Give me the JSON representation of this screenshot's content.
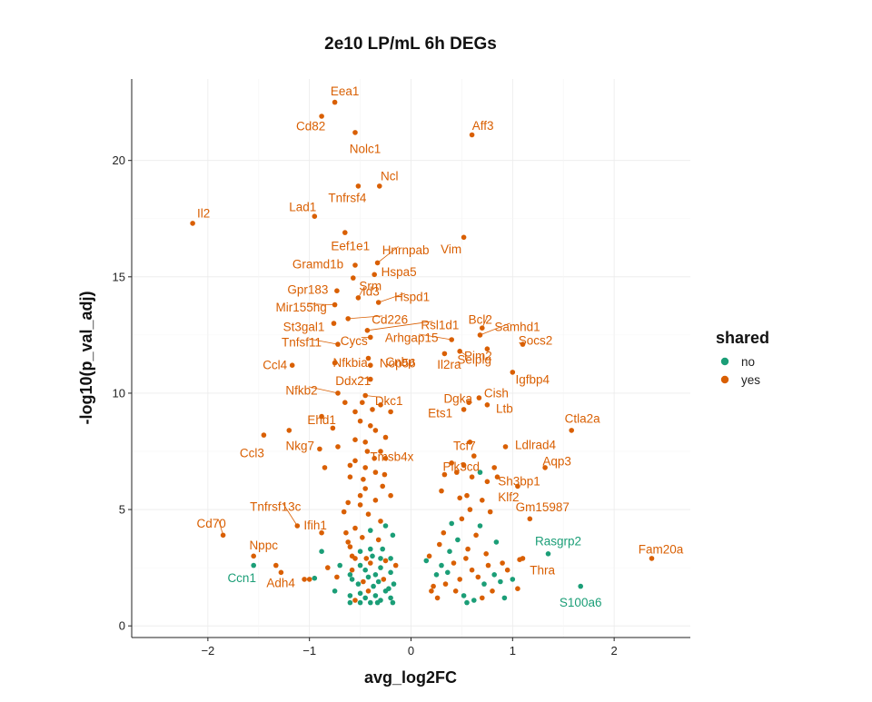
{
  "chart_data": {
    "type": "scatter",
    "title": "2e10 LP/mL 6h DEGs",
    "xlabel": "avg_log2FC",
    "ylabel": "-log10(p_val_adj)",
    "xlim": [
      -2.75,
      2.75
    ],
    "ylim": [
      -0.5,
      23.5
    ],
    "x_ticks": [
      -2,
      -1,
      0,
      1,
      2
    ],
    "y_ticks": [
      0,
      5,
      10,
      15,
      20
    ],
    "grid": true,
    "legend": {
      "title": "shared",
      "placement": "right",
      "entries": [
        {
          "key": "no",
          "label": "no",
          "color": "#1B9E77"
        },
        {
          "key": "yes",
          "label": "yes",
          "color": "#D95F02"
        }
      ]
    },
    "labeled_points": [
      {
        "gene": "Eea1",
        "x": -0.75,
        "y": 22.5,
        "shared": "yes"
      },
      {
        "gene": "Cd82",
        "x": -0.88,
        "y": 21.9,
        "shared": "yes"
      },
      {
        "gene": "Nolc1",
        "x": -0.55,
        "y": 21.2,
        "shared": "yes"
      },
      {
        "gene": "Aff3",
        "x": 0.6,
        "y": 21.1,
        "shared": "yes"
      },
      {
        "gene": "Ncl",
        "x": -0.31,
        "y": 18.9,
        "shared": "yes"
      },
      {
        "gene": "Tnfrsf4",
        "x": -0.52,
        "y": 18.9,
        "shared": "yes"
      },
      {
        "gene": "Lad1",
        "x": -0.95,
        "y": 17.6,
        "shared": "yes"
      },
      {
        "gene": "Il2",
        "x": -2.15,
        "y": 17.3,
        "shared": "yes"
      },
      {
        "gene": "Eef1e1",
        "x": -0.65,
        "y": 16.9,
        "shared": "yes"
      },
      {
        "gene": "Vim",
        "x": 0.52,
        "y": 16.7,
        "shared": "yes"
      },
      {
        "gene": "Hnrnpab",
        "x": -0.33,
        "y": 15.6,
        "shared": "yes"
      },
      {
        "gene": "Gramd1b",
        "x": -0.55,
        "y": 15.5,
        "shared": "yes"
      },
      {
        "gene": "Hspa5",
        "x": -0.36,
        "y": 15.1,
        "shared": "yes"
      },
      {
        "gene": "Gpr183",
        "x": -0.73,
        "y": 14.4,
        "shared": "yes"
      },
      {
        "gene": "Srm",
        "x": -0.57,
        "y": 14.95,
        "shared": "yes"
      },
      {
        "gene": "Hspd1",
        "x": -0.32,
        "y": 13.9,
        "shared": "yes"
      },
      {
        "gene": "Mir155hg",
        "x": -0.75,
        "y": 13.8,
        "shared": "yes"
      },
      {
        "gene": "Id3",
        "x": -0.52,
        "y": 14.1,
        "shared": "yes"
      },
      {
        "gene": "Cd226",
        "x": -0.62,
        "y": 13.2,
        "shared": "yes"
      },
      {
        "gene": "Rsl1d1",
        "x": -0.43,
        "y": 12.7,
        "shared": "yes"
      },
      {
        "gene": "Bcl2",
        "x": 0.7,
        "y": 12.8,
        "shared": "yes"
      },
      {
        "gene": "Samhd1",
        "x": 0.68,
        "y": 12.5,
        "shared": "yes"
      },
      {
        "gene": "St3gal1",
        "x": -0.76,
        "y": 13.0,
        "shared": "yes"
      },
      {
        "gene": "Cycs",
        "x": -0.4,
        "y": 12.4,
        "shared": "yes"
      },
      {
        "gene": "Arhgap15",
        "x": 0.4,
        "y": 12.3,
        "shared": "yes"
      },
      {
        "gene": "Socs2",
        "x": 1.1,
        "y": 12.1,
        "shared": "yes"
      },
      {
        "gene": "Tnfsf11",
        "x": -0.72,
        "y": 12.1,
        "shared": "yes"
      },
      {
        "gene": "Selplg",
        "x": 0.48,
        "y": 11.8,
        "shared": "yes"
      },
      {
        "gene": "Cnbp",
        "x": -0.42,
        "y": 11.5,
        "shared": "yes"
      },
      {
        "gene": "Ccl4",
        "x": -1.17,
        "y": 11.2,
        "shared": "yes"
      },
      {
        "gene": "Nfkbia",
        "x": -0.75,
        "y": 11.3,
        "shared": "yes"
      },
      {
        "gene": "Il2ra",
        "x": 0.33,
        "y": 11.7,
        "shared": "yes"
      },
      {
        "gene": "Pim2",
        "x": 0.75,
        "y": 11.9,
        "shared": "yes"
      },
      {
        "gene": "Nop56",
        "x": -0.4,
        "y": 11.2,
        "shared": "yes"
      },
      {
        "gene": "Ddx21",
        "x": -0.4,
        "y": 10.6,
        "shared": "yes"
      },
      {
        "gene": "Igfbp4",
        "x": 1.0,
        "y": 10.9,
        "shared": "yes"
      },
      {
        "gene": "Nfkb2",
        "x": -0.72,
        "y": 10.0,
        "shared": "yes"
      },
      {
        "gene": "Dkc1",
        "x": -0.45,
        "y": 9.9,
        "shared": "yes"
      },
      {
        "gene": "Dgka",
        "x": 0.57,
        "y": 9.6,
        "shared": "yes"
      },
      {
        "gene": "Cish",
        "x": 0.67,
        "y": 9.8,
        "shared": "yes"
      },
      {
        "gene": "Ehd1",
        "x": -0.88,
        "y": 9.0,
        "shared": "yes"
      },
      {
        "gene": "Ets1",
        "x": 0.52,
        "y": 9.3,
        "shared": "yes"
      },
      {
        "gene": "Ltb",
        "x": 0.75,
        "y": 9.5,
        "shared": "yes"
      },
      {
        "gene": "Tcf7",
        "x": 0.58,
        "y": 7.9,
        "shared": "yes"
      },
      {
        "gene": "Ctla2a",
        "x": 1.58,
        "y": 8.4,
        "shared": "yes"
      },
      {
        "gene": "Ccl3",
        "x": -1.45,
        "y": 8.2,
        "shared": "yes"
      },
      {
        "gene": "Nkg7",
        "x": -1.2,
        "y": 8.4,
        "shared": "yes"
      },
      {
        "gene": "Ldlrad4",
        "x": 0.93,
        "y": 7.7,
        "shared": "yes"
      },
      {
        "gene": "Tmsb4x",
        "x": -0.43,
        "y": 7.5,
        "shared": "yes"
      },
      {
        "gene": "Pik3cd",
        "x": 0.62,
        "y": 7.3,
        "shared": "yes"
      },
      {
        "gene": "Aqp3",
        "x": 1.32,
        "y": 6.8,
        "shared": "yes"
      },
      {
        "gene": "Sh3bp1",
        "x": 0.85,
        "y": 6.4,
        "shared": "yes"
      },
      {
        "gene": "Klf2",
        "x": 1.05,
        "y": 6.0,
        "shared": "yes"
      },
      {
        "gene": "Tnfrsf13c",
        "x": -1.12,
        "y": 4.3,
        "shared": "yes"
      },
      {
        "gene": "Gm15987",
        "x": 1.17,
        "y": 4.6,
        "shared": "yes"
      },
      {
        "gene": "Ifih1",
        "x": -0.88,
        "y": 4.0,
        "shared": "yes"
      },
      {
        "gene": "Cd70",
        "x": -1.85,
        "y": 3.9,
        "shared": "yes"
      },
      {
        "gene": "Rasgrp2",
        "x": 1.35,
        "y": 3.1,
        "shared": "no"
      },
      {
        "gene": "Fam20a",
        "x": 2.37,
        "y": 2.9,
        "shared": "yes"
      },
      {
        "gene": "Nppc",
        "x": -1.55,
        "y": 3.0,
        "shared": "yes"
      },
      {
        "gene": "Thra",
        "x": 1.07,
        "y": 2.85,
        "shared": "yes"
      },
      {
        "gene": "Ccn1",
        "x": -1.55,
        "y": 2.6,
        "shared": "no"
      },
      {
        "gene": "Adh4",
        "x": -1.05,
        "y": 2.0,
        "shared": "yes"
      },
      {
        "gene": "S100a6",
        "x": 1.67,
        "y": 1.7,
        "shared": "no"
      }
    ],
    "points": [
      [
        -1.33,
        2.6,
        "yes"
      ],
      [
        -1.28,
        2.3,
        "yes"
      ],
      [
        -1.0,
        2.0,
        "yes"
      ],
      [
        -0.95,
        2.05,
        "no"
      ],
      [
        -0.88,
        3.2,
        "no"
      ],
      [
        -0.82,
        2.5,
        "yes"
      ],
      [
        -0.75,
        1.5,
        "no"
      ],
      [
        -0.73,
        2.1,
        "yes"
      ],
      [
        -0.7,
        2.6,
        "no"
      ],
      [
        -0.6,
        2.2,
        "no"
      ],
      [
        -0.6,
        3.4,
        "yes"
      ],
      [
        -0.58,
        3.0,
        "yes"
      ],
      [
        -0.62,
        5.3,
        "yes"
      ],
      [
        -0.64,
        4.0,
        "yes"
      ],
      [
        -0.66,
        4.9,
        "yes"
      ],
      [
        -0.9,
        7.6,
        "yes"
      ],
      [
        -0.85,
        6.8,
        "yes"
      ],
      [
        -0.77,
        8.5,
        "yes"
      ],
      [
        -0.72,
        7.7,
        "yes"
      ],
      [
        -0.6,
        6.4,
        "yes"
      ],
      [
        -0.55,
        7.1,
        "yes"
      ],
      [
        -0.55,
        8.0,
        "yes"
      ],
      [
        -0.5,
        8.8,
        "yes"
      ],
      [
        -0.45,
        7.9,
        "yes"
      ],
      [
        -0.4,
        8.6,
        "yes"
      ],
      [
        -0.35,
        8.4,
        "yes"
      ],
      [
        -0.3,
        7.5,
        "yes"
      ],
      [
        -0.25,
        8.1,
        "yes"
      ],
      [
        -0.2,
        9.2,
        "yes"
      ],
      [
        -0.48,
        9.6,
        "yes"
      ],
      [
        -0.55,
        9.2,
        "yes"
      ],
      [
        -0.65,
        9.6,
        "yes"
      ],
      [
        -0.38,
        9.3,
        "yes"
      ],
      [
        -0.3,
        9.5,
        "yes"
      ],
      [
        -0.25,
        7.2,
        "yes"
      ],
      [
        -0.45,
        6.8,
        "yes"
      ],
      [
        -0.35,
        6.6,
        "yes"
      ],
      [
        -0.28,
        6.0,
        "yes"
      ],
      [
        -0.2,
        5.6,
        "yes"
      ],
      [
        -0.45,
        5.9,
        "yes"
      ],
      [
        -0.5,
        5.2,
        "yes"
      ],
      [
        -0.42,
        4.8,
        "yes"
      ],
      [
        -0.35,
        5.4,
        "yes"
      ],
      [
        -0.3,
        4.5,
        "yes"
      ],
      [
        -0.55,
        4.2,
        "yes"
      ],
      [
        -0.48,
        3.8,
        "yes"
      ],
      [
        -0.4,
        4.1,
        "no"
      ],
      [
        -0.32,
        3.7,
        "yes"
      ],
      [
        -0.25,
        4.3,
        "no"
      ],
      [
        -0.18,
        3.9,
        "no"
      ],
      [
        -0.62,
        3.6,
        "yes"
      ],
      [
        -0.4,
        3.3,
        "no"
      ],
      [
        -0.55,
        2.9,
        "yes"
      ],
      [
        -0.5,
        2.6,
        "no"
      ],
      [
        -0.45,
        2.4,
        "no"
      ],
      [
        -0.4,
        2.7,
        "yes"
      ],
      [
        -0.35,
        2.2,
        "no"
      ],
      [
        -0.3,
        2.5,
        "no"
      ],
      [
        -0.25,
        2.8,
        "yes"
      ],
      [
        -0.2,
        2.3,
        "no"
      ],
      [
        -0.15,
        2.6,
        "yes"
      ],
      [
        -0.58,
        2.0,
        "no"
      ],
      [
        -0.52,
        1.8,
        "no"
      ],
      [
        -0.47,
        1.9,
        "yes"
      ],
      [
        -0.42,
        2.1,
        "no"
      ],
      [
        -0.37,
        1.7,
        "no"
      ],
      [
        -0.32,
        1.9,
        "no"
      ],
      [
        -0.27,
        2.0,
        "yes"
      ],
      [
        -0.22,
        1.6,
        "no"
      ],
      [
        -0.17,
        1.8,
        "no"
      ],
      [
        -0.6,
        1.3,
        "no"
      ],
      [
        -0.55,
        1.1,
        "yes"
      ],
      [
        -0.5,
        1.4,
        "no"
      ],
      [
        -0.45,
        1.2,
        "no"
      ],
      [
        -0.4,
        1.0,
        "no"
      ],
      [
        -0.35,
        1.3,
        "no"
      ],
      [
        -0.3,
        1.1,
        "no"
      ],
      [
        -0.25,
        1.5,
        "no"
      ],
      [
        -0.2,
        1.2,
        "no"
      ],
      [
        -0.18,
        1.0,
        "no"
      ],
      [
        -0.6,
        1.0,
        "no"
      ],
      [
        -0.5,
        1.0,
        "no"
      ],
      [
        -0.42,
        1.5,
        "yes"
      ],
      [
        -0.33,
        1.0,
        "no"
      ],
      [
        -0.5,
        3.2,
        "no"
      ],
      [
        -0.38,
        3.0,
        "no"
      ],
      [
        -0.28,
        3.3,
        "no"
      ],
      [
        -0.44,
        2.9,
        "yes"
      ],
      [
        -0.58,
        2.4,
        "yes"
      ],
      [
        -0.3,
        2.9,
        "no"
      ],
      [
        -0.2,
        2.9,
        "no"
      ],
      [
        -0.47,
        6.3,
        "yes"
      ],
      [
        -0.6,
        6.9,
        "yes"
      ],
      [
        -0.36,
        7.2,
        "yes"
      ],
      [
        -0.26,
        6.5,
        "yes"
      ],
      [
        -0.5,
        5.6,
        "yes"
      ],
      [
        0.15,
        2.8,
        "no"
      ],
      [
        0.18,
        3.0,
        "yes"
      ],
      [
        0.22,
        1.7,
        "yes"
      ],
      [
        0.25,
        2.2,
        "no"
      ],
      [
        0.28,
        3.5,
        "yes"
      ],
      [
        0.3,
        2.6,
        "no"
      ],
      [
        0.32,
        4.0,
        "yes"
      ],
      [
        0.34,
        1.8,
        "yes"
      ],
      [
        0.36,
        2.3,
        "no"
      ],
      [
        0.38,
        3.2,
        "no"
      ],
      [
        0.4,
        4.4,
        "no"
      ],
      [
        0.42,
        2.7,
        "yes"
      ],
      [
        0.44,
        1.5,
        "yes"
      ],
      [
        0.46,
        3.7,
        "no"
      ],
      [
        0.48,
        2.0,
        "yes"
      ],
      [
        0.5,
        4.6,
        "yes"
      ],
      [
        0.52,
        1.3,
        "no"
      ],
      [
        0.54,
        2.9,
        "yes"
      ],
      [
        0.56,
        3.3,
        "yes"
      ],
      [
        0.58,
        5.0,
        "yes"
      ],
      [
        0.6,
        2.4,
        "yes"
      ],
      [
        0.62,
        1.1,
        "no"
      ],
      [
        0.64,
        3.9,
        "yes"
      ],
      [
        0.66,
        2.1,
        "yes"
      ],
      [
        0.68,
        4.3,
        "no"
      ],
      [
        0.7,
        5.4,
        "yes"
      ],
      [
        0.72,
        1.8,
        "no"
      ],
      [
        0.74,
        3.1,
        "yes"
      ],
      [
        0.76,
        2.6,
        "yes"
      ],
      [
        0.78,
        4.9,
        "yes"
      ],
      [
        0.8,
        1.5,
        "yes"
      ],
      [
        0.82,
        2.2,
        "no"
      ],
      [
        0.84,
        3.6,
        "no"
      ],
      [
        0.88,
        1.9,
        "no"
      ],
      [
        0.9,
        2.7,
        "yes"
      ],
      [
        0.92,
        1.2,
        "no"
      ],
      [
        0.95,
        2.4,
        "yes"
      ],
      [
        1.0,
        2.0,
        "no"
      ],
      [
        1.05,
        1.6,
        "yes"
      ],
      [
        1.1,
        2.9,
        "yes"
      ],
      [
        0.33,
        6.5,
        "yes"
      ],
      [
        0.4,
        7.0,
        "yes"
      ],
      [
        0.45,
        6.6,
        "yes"
      ],
      [
        0.52,
        6.9,
        "yes"
      ],
      [
        0.6,
        6.4,
        "yes"
      ],
      [
        0.68,
        6.6,
        "no"
      ],
      [
        0.75,
        6.2,
        "yes"
      ],
      [
        0.82,
        6.8,
        "yes"
      ],
      [
        0.2,
        1.5,
        "yes"
      ],
      [
        0.26,
        1.2,
        "yes"
      ],
      [
        0.55,
        1.0,
        "no"
      ],
      [
        0.7,
        1.2,
        "yes"
      ],
      [
        0.3,
        5.8,
        "yes"
      ],
      [
        0.48,
        5.5,
        "yes"
      ],
      [
        0.55,
        5.6,
        "yes"
      ]
    ]
  }
}
